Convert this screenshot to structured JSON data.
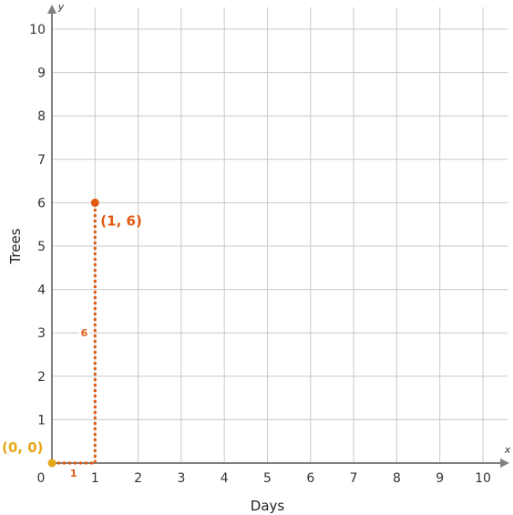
{
  "chart_data": {
    "type": "scatter",
    "xlabel": "Days",
    "ylabel": "Trees",
    "x_axis_letter": "x",
    "y_axis_letter": "y",
    "xlim": [
      0,
      10
    ],
    "ylim": [
      0,
      10
    ],
    "x_ticks": [
      "0",
      "1",
      "2",
      "3",
      "4",
      "5",
      "6",
      "7",
      "8",
      "9",
      "10"
    ],
    "y_ticks": [
      "1",
      "2",
      "3",
      "4",
      "5",
      "6",
      "7",
      "8",
      "9",
      "10"
    ],
    "grid": true,
    "points": [
      {
        "x": 0,
        "y": 0,
        "label": "(0, 0)",
        "color": "#e6a817"
      },
      {
        "x": 1,
        "y": 6,
        "label": "(1, 6)",
        "color": "#e05a12"
      }
    ],
    "segments": [
      {
        "from": [
          0,
          0
        ],
        "to": [
          1,
          0
        ],
        "label": "1",
        "style": "dotted",
        "color": "#e05a12"
      },
      {
        "from": [
          1,
          0
        ],
        "to": [
          1,
          6
        ],
        "label": "6",
        "style": "dotted",
        "color": "#e05a12"
      }
    ]
  }
}
